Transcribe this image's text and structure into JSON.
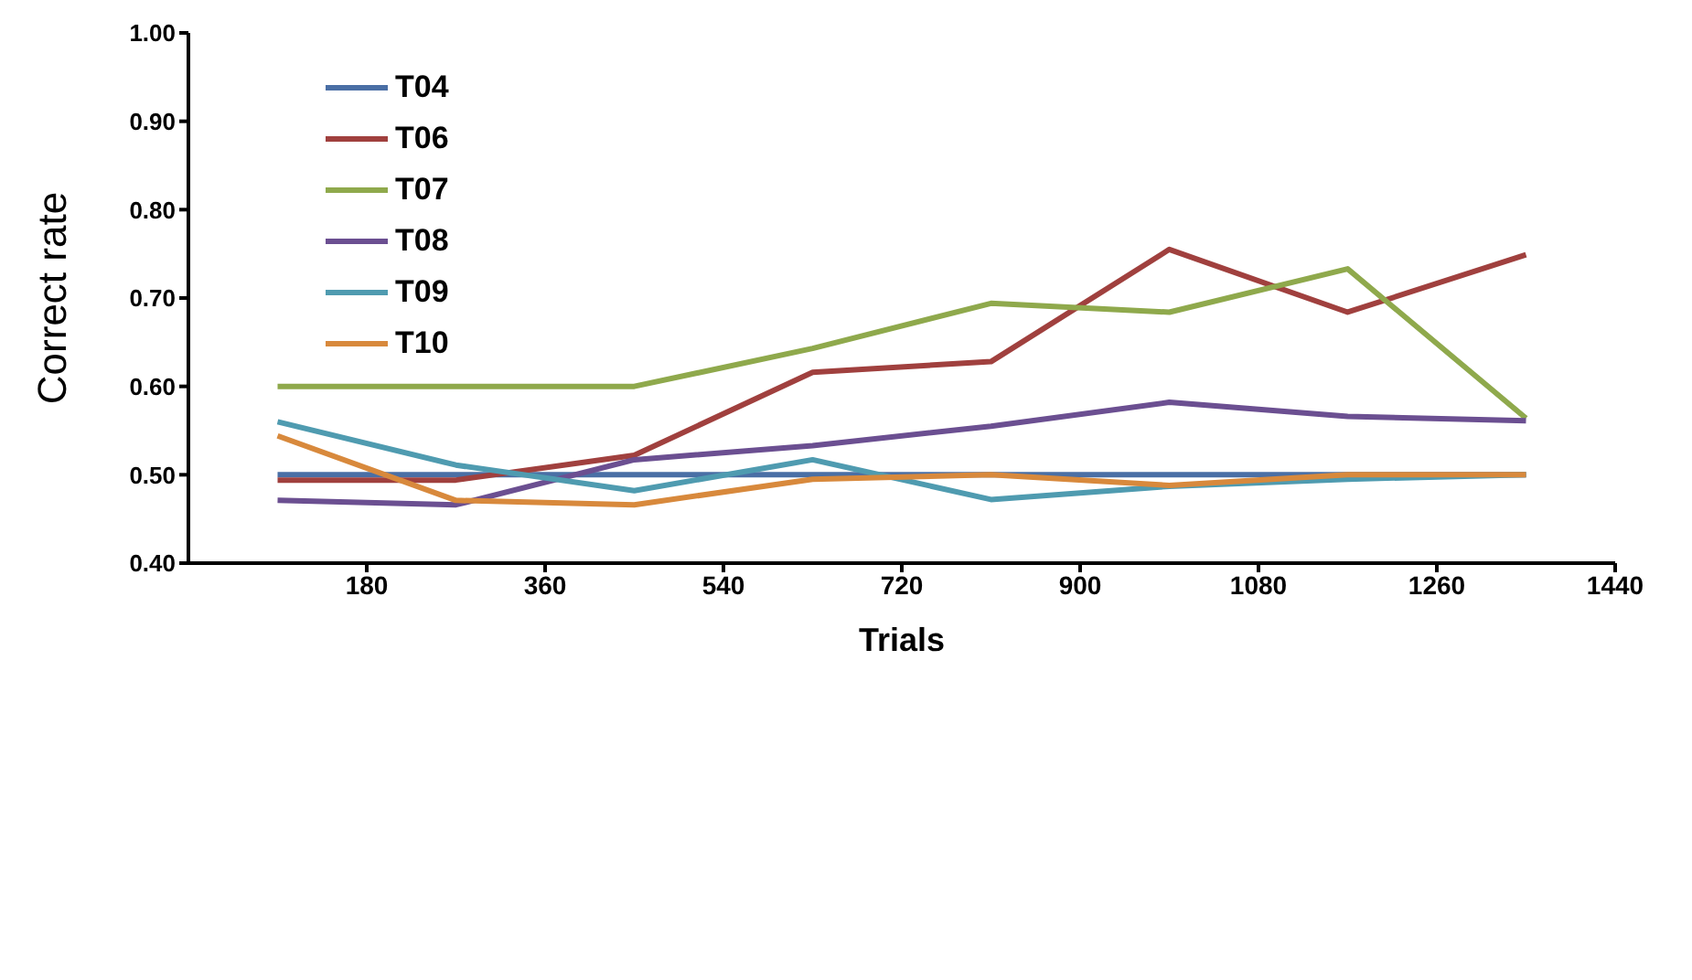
{
  "chart_data": {
    "type": "line",
    "xlabel": "Trials",
    "ylabel": "Correct rate",
    "x": [
      90,
      270,
      450,
      630,
      810,
      990,
      1170,
      1350
    ],
    "series": [
      {
        "name": "T04",
        "color": "#4a6fa5",
        "values": [
          0.5,
          0.5,
          0.5,
          0.5,
          0.5,
          0.5,
          0.5,
          0.5
        ]
      },
      {
        "name": "T06",
        "color": "#a0403e",
        "values": [
          0.494,
          0.494,
          0.522,
          0.616,
          0.628,
          0.755,
          0.684,
          0.749
        ]
      },
      {
        "name": "T07",
        "color": "#8fa94c",
        "values": [
          0.6,
          0.6,
          0.6,
          0.643,
          0.694,
          0.684,
          0.733,
          0.564
        ]
      },
      {
        "name": "T08",
        "color": "#6b4f91",
        "values": [
          0.471,
          0.466,
          0.517,
          0.533,
          0.555,
          0.582,
          0.566,
          0.561
        ]
      },
      {
        "name": "T09",
        "color": "#4f9bb0",
        "values": [
          0.56,
          0.511,
          0.482,
          0.517,
          0.472,
          0.487,
          0.495,
          0.5
        ]
      },
      {
        "name": "T10",
        "color": "#d8893c",
        "values": [
          0.544,
          0.471,
          0.466,
          0.495,
          0.5,
          0.488,
          0.5,
          0.5
        ]
      }
    ],
    "xlim": [
      0,
      1440
    ],
    "xticks": [
      180,
      360,
      540,
      720,
      900,
      1080,
      1260,
      1440
    ],
    "ylim": [
      0.4,
      1.0
    ],
    "yticks": [
      {
        "value": 0.4,
        "label": "0.40"
      },
      {
        "value": 0.5,
        "label": "0.50"
      },
      {
        "value": 0.6,
        "label": "0.60"
      },
      {
        "value": 0.7,
        "label": "0.70"
      },
      {
        "value": 0.8,
        "label": "0.80"
      },
      {
        "value": 0.9,
        "label": "0.90"
      },
      {
        "value": 1.0,
        "label": "1.00"
      }
    ],
    "grid": false,
    "legend": "top left",
    "marker": "none",
    "line_style": "solid"
  }
}
